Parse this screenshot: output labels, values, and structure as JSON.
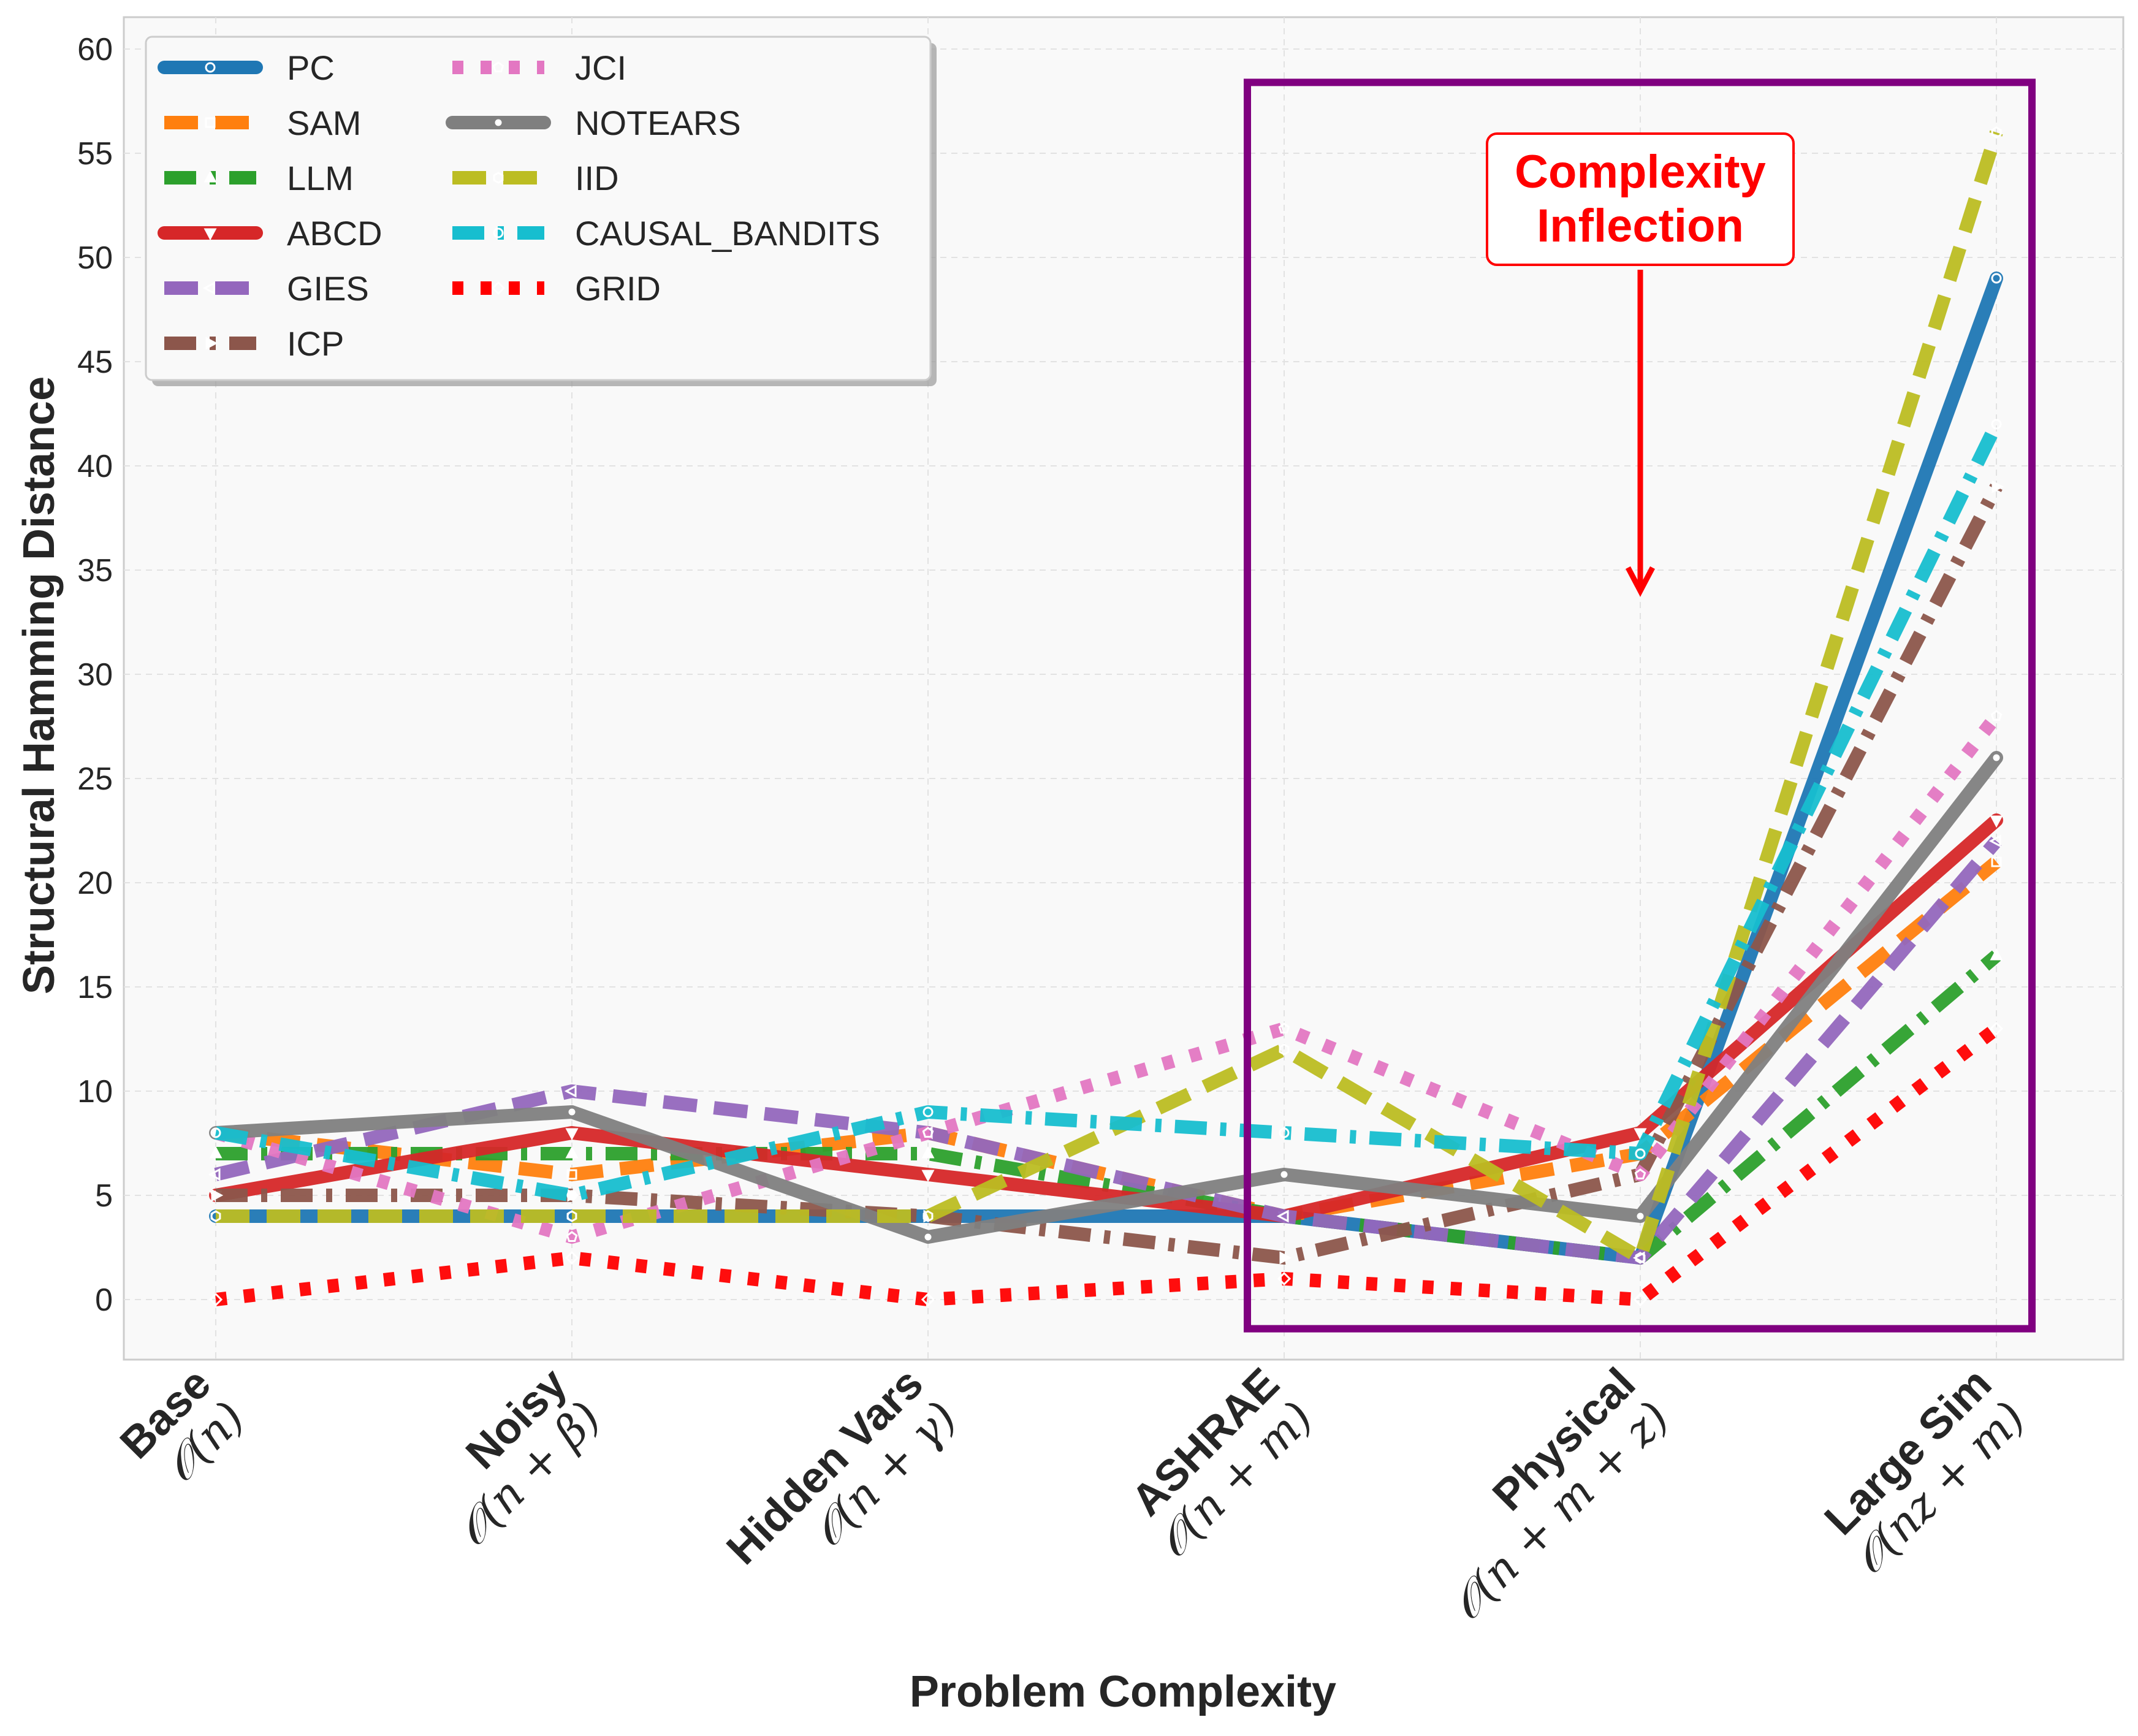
{
  "chart_data": {
    "type": "line",
    "title": "",
    "xlabel": "Problem Complexity",
    "ylabel": "Structural Hamming Distance",
    "ylim": [
      -3,
      61.5
    ],
    "yticks": [
      0,
      5,
      10,
      15,
      20,
      25,
      30,
      35,
      40,
      45,
      50,
      55,
      60
    ],
    "grid": true,
    "legend_location": "upper-left",
    "categories": [
      {
        "name": "Base",
        "complexity": "𝒪(n)"
      },
      {
        "name": "Noisy",
        "complexity": "𝒪(n + β)"
      },
      {
        "name": "Hidden Vars",
        "complexity": "𝒪(n + γ)"
      },
      {
        "name": "ASHRAE",
        "complexity": "𝒪(n + m)"
      },
      {
        "name": "Physical",
        "complexity": "𝒪(n + m + z)"
      },
      {
        "name": "Large Sim",
        "complexity": "𝒪(nz + m)"
      }
    ],
    "series": [
      {
        "name": "PC",
        "color": "#1f77b4",
        "dash": "solid",
        "marker": "circle",
        "values": [
          4,
          4,
          4,
          4,
          2,
          49
        ]
      },
      {
        "name": "SAM",
        "color": "#ff7f0e",
        "dash": "dash",
        "marker": "square",
        "values": [
          8,
          6,
          8,
          4,
          7,
          21
        ]
      },
      {
        "name": "LLM",
        "color": "#2ca02c",
        "dash": "dashdot",
        "marker": "triangle-up",
        "values": [
          7,
          7,
          7,
          4,
          2,
          16.5
        ]
      },
      {
        "name": "ABCD",
        "color": "#d62728",
        "dash": "solid",
        "marker": "triangle-down",
        "values": [
          5,
          8,
          6,
          4,
          8,
          23
        ]
      },
      {
        "name": "GIES",
        "color": "#9467bd",
        "dash": "dash",
        "marker": "triangle-left",
        "values": [
          6,
          10,
          8,
          4,
          2,
          22
        ]
      },
      {
        "name": "ICP",
        "color": "#8c564b",
        "dash": "dashdot",
        "marker": "triangle-right",
        "values": [
          5,
          5,
          4,
          2,
          6,
          39
        ]
      },
      {
        "name": "JCI",
        "color": "#e377c2",
        "dash": "dotted",
        "marker": "pentagon",
        "values": [
          8,
          3,
          8,
          13,
          6,
          28
        ]
      },
      {
        "name": "NOTEARS",
        "color": "#7f7f7f",
        "dash": "solid",
        "marker": "point",
        "values": [
          8,
          9,
          3,
          6,
          4,
          26
        ]
      },
      {
        "name": "IID",
        "color": "#bcbd22",
        "dash": "dash",
        "marker": "hexagon",
        "values": [
          4,
          4,
          4,
          12,
          2,
          56
        ]
      },
      {
        "name": "CAUSAL_BANDITS",
        "color": "#17becf",
        "dash": "dashdot",
        "marker": "circle",
        "values": [
          8,
          5,
          9,
          8,
          7,
          42
        ]
      },
      {
        "name": "GRID",
        "color": "#ff0000",
        "dash": "dotted",
        "marker": "diamond",
        "values": [
          0,
          2,
          0,
          1,
          0,
          13
        ]
      }
    ],
    "annotations": [
      {
        "text_line1": "Complexity",
        "text_line2": "Inflection",
        "color": "#ff0000",
        "points_to": "Physical",
        "y_text": 52.5,
        "y_arrow_end": 34
      }
    ],
    "highlight_region": {
      "from_category": "ASHRAE",
      "to_category": "Large Sim",
      "y_from": -1.4,
      "y_to": 58.4,
      "color": "#800080"
    }
  }
}
